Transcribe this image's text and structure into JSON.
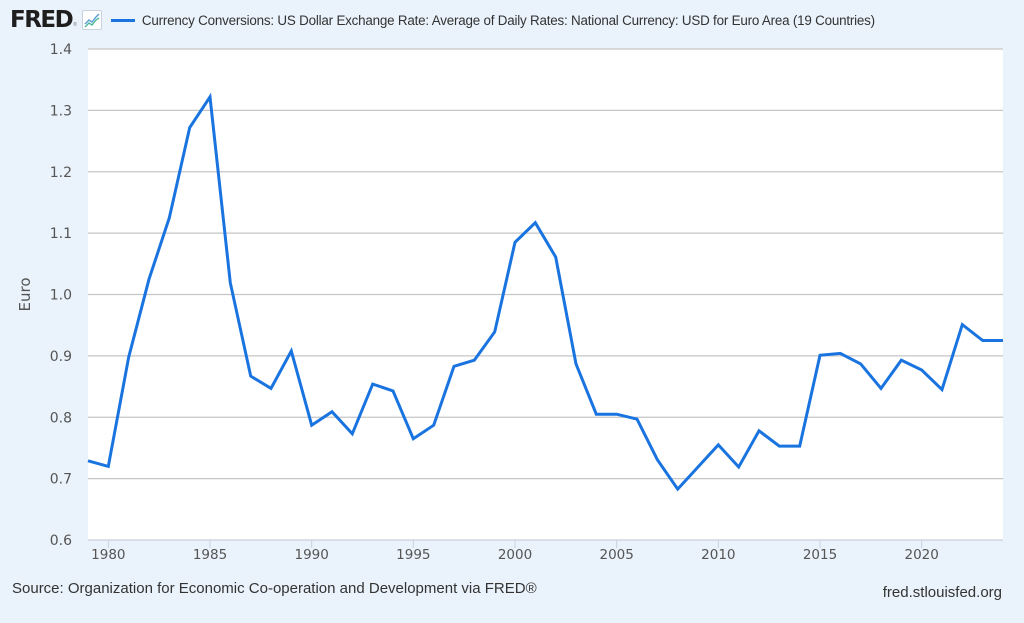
{
  "header": {
    "logo_text": "FRED",
    "logo_reg": "®",
    "logo_icon": "line-chart-icon",
    "legend_label": "Currency Conversions: US Dollar Exchange Rate: Average of Daily Rates: National Currency: USD for Euro Area (19 Countries)"
  },
  "footer": {
    "source": "Source: Organization for Economic Co-operation and Development via FRED®",
    "url": "fred.stlouisfed.org"
  },
  "colors": {
    "series": "#1a74e0",
    "plot_background": "#ffffff",
    "page_background": "#eaf2fb",
    "gridline": "#c6c6c6",
    "tick_text": "#555555"
  },
  "chart_data": {
    "type": "line",
    "title": "Currency Conversions: US Dollar Exchange Rate: Average of Daily Rates: National Currency: USD for Euro Area (19 Countries)",
    "xlabel": "",
    "ylabel": "Euro",
    "xlim": [
      1979,
      2024
    ],
    "ylim": [
      0.6,
      1.4
    ],
    "grid": true,
    "legend_position": "top-left",
    "x_ticks": [
      1980,
      1985,
      1990,
      1995,
      2000,
      2005,
      2010,
      2015,
      2020
    ],
    "x_tick_labels": [
      "1980",
      "1985",
      "1990",
      "1995",
      "2000",
      "2005",
      "2010",
      "2015",
      "2020"
    ],
    "y_ticks": [
      0.6,
      0.7,
      0.8,
      0.9,
      1.0,
      1.1,
      1.2,
      1.3,
      1.4
    ],
    "y_tick_labels": [
      "0.6",
      "0.7",
      "0.8",
      "0.9",
      "1.0",
      "1.1",
      "1.2",
      "1.3",
      "1.4"
    ],
    "series": [
      {
        "name": "Currency Conversions: US Dollar Exchange Rate: Average of Daily Rates: National Currency: USD for Euro Area (19 Countries)",
        "x": [
          1979,
          1980,
          1981,
          1982,
          1983,
          1984,
          1985,
          1986,
          1987,
          1988,
          1989,
          1990,
          1991,
          1992,
          1993,
          1994,
          1995,
          1996,
          1997,
          1998,
          1999,
          2000,
          2001,
          2002,
          2003,
          2004,
          2005,
          2006,
          2007,
          2008,
          2009,
          2010,
          2011,
          2012,
          2013,
          2014,
          2015,
          2016,
          2017,
          2018,
          2019,
          2020,
          2021,
          2022,
          2023,
          2024
        ],
        "values": [
          0.729,
          0.72,
          0.898,
          1.025,
          1.125,
          1.272,
          1.322,
          1.019,
          0.867,
          0.847,
          0.908,
          0.787,
          0.809,
          0.773,
          0.854,
          0.843,
          0.765,
          0.787,
          0.883,
          0.893,
          0.939,
          1.085,
          1.117,
          1.061,
          0.887,
          0.805,
          0.805,
          0.797,
          0.731,
          0.683,
          0.719,
          0.755,
          0.719,
          0.778,
          0.753,
          0.753,
          0.901,
          0.904,
          0.887,
          0.847,
          0.893,
          0.877,
          0.845,
          0.951,
          0.925,
          0.925
        ]
      }
    ]
  }
}
